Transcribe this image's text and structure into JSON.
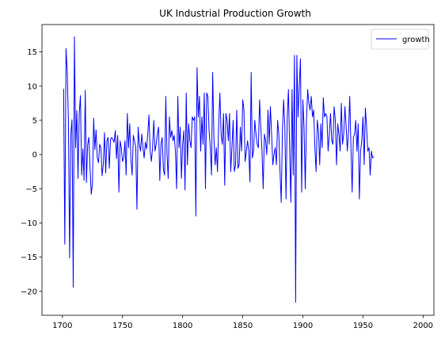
{
  "chart_data": {
    "type": "line",
    "title": "UK Industrial Production Growth",
    "xlabel": "",
    "ylabel": "",
    "xlim": [
      1683,
      2009
    ],
    "ylim": [
      -23.5,
      19
    ],
    "x_ticks": [
      1700,
      1750,
      1800,
      1850,
      1900,
      1950,
      2000
    ],
    "x_tick_labels": [
      "1700",
      "1750",
      "1800",
      "1850",
      "1900",
      "1950",
      "2000"
    ],
    "y_ticks": [
      -20,
      -15,
      -10,
      -5,
      0,
      5,
      10,
      15
    ],
    "y_tick_labels": [
      "−20",
      "−15",
      "−10",
      "−5",
      "0",
      "5",
      "10",
      "15"
    ],
    "grid": false,
    "legend": "top-right",
    "series": [
      {
        "name": "growth",
        "color": "#0000ff",
        "x_start": 1701,
        "x_step": 1,
        "values": [
          9.6,
          -13.1,
          15.5,
          12.2,
          5.0,
          -15.1,
          3.0,
          5.1,
          -19.4,
          17.2,
          1.0,
          6.4,
          -3.5,
          6.0,
          8.6,
          -3.0,
          0.8,
          -3.8,
          9.4,
          -4.1,
          1.5,
          2.5,
          -2.0,
          -5.8,
          -4.2,
          5.3,
          0.7,
          3.6,
          -0.5,
          -1.2,
          1.5,
          1.0,
          -3.1,
          -1.5,
          3.2,
          -2.7,
          2.0,
          2.5,
          -2.0,
          2.2,
          2.5,
          2.2,
          1.8,
          3.5,
          -0.6,
          2.8,
          -5.5,
          2.0,
          1.0,
          -1.0,
          -0.5,
          2.0,
          -3.0,
          6.0,
          1.0,
          4.5,
          -0.8,
          -3.0,
          2.8,
          2.0,
          1.0,
          -8.0,
          4.0,
          1.5,
          0.5,
          3.0,
          1.0,
          -0.5,
          1.8,
          0.8,
          3.0,
          5.8,
          0.5,
          -1.0,
          1.0,
          5.0,
          0.5,
          1.5,
          3.0,
          4.0,
          -3.8,
          1.5,
          2.5,
          -2.2,
          -3.0,
          8.5,
          0.0,
          -3.5,
          5.5,
          2.5,
          3.5,
          2.0,
          2.8,
          0.5,
          -5.0,
          8.5,
          1.0,
          4.0,
          -3.5,
          1.5,
          3.5,
          -5.2,
          9.0,
          -1.5,
          4.5,
          2.0,
          1.0,
          5.5,
          5.0,
          5.5,
          -9.0,
          12.7,
          5.5,
          8.5,
          0.5,
          5.5,
          1.5,
          9.0,
          -5.0,
          9.0,
          8.5,
          3.5,
          1.0,
          -3.0,
          12.0,
          2.5,
          -1.5,
          1.0,
          -2.5,
          4.5,
          9.0,
          3.0,
          1.5,
          6.0,
          -4.5,
          6.0,
          5.0,
          2.0,
          6.0,
          -2.5,
          1.0,
          5.0,
          -2.5,
          -1.5,
          6.5,
          -2.0,
          -1.5,
          4.0,
          0.5,
          8.0,
          6.5,
          -1.0,
          0.5,
          2.0,
          0.5,
          -4.0,
          12.0,
          -0.5,
          0.5,
          5.0,
          3.0,
          1.5,
          1.0,
          8.0,
          4.0,
          0.5,
          -5.0,
          3.0,
          2.0,
          0.0,
          6.5,
          1.5,
          7.0,
          3.0,
          -1.5,
          0.0,
          1.0,
          -1.5,
          5.0,
          3.0,
          -2.5,
          -7.0,
          3.5,
          8.0,
          4.0,
          -6.5,
          5.5,
          9.5,
          1.0,
          -7.0,
          9.5,
          -3.0,
          14.5,
          -21.6,
          14.5,
          5.5,
          10.0,
          14.0,
          -5.5,
          8.0,
          4.0,
          -5.0,
          5.0,
          9.5,
          7.5,
          6.5,
          8.5,
          5.5,
          6.5,
          1.0,
          -2.5,
          5.0,
          3.5,
          -1.5,
          4.5,
          1.0,
          8.3,
          5.5,
          6.0,
          5.5,
          0.5,
          3.0,
          6.0,
          2.0,
          1.5,
          7.0,
          5.0,
          -1.5,
          4.5,
          3.0,
          0.5,
          7.5,
          1.5,
          3.0,
          7.0,
          4.0,
          0.5,
          3.5,
          8.5,
          1.0,
          -5.5,
          2.5,
          3.0,
          5.0,
          0.5,
          4.5,
          -6.5,
          0.5,
          2.0,
          5.5,
          -1.5,
          6.8,
          4.0,
          0.5,
          1.0,
          -3.0,
          0.5,
          -0.5,
          -0.3
        ]
      }
    ]
  }
}
